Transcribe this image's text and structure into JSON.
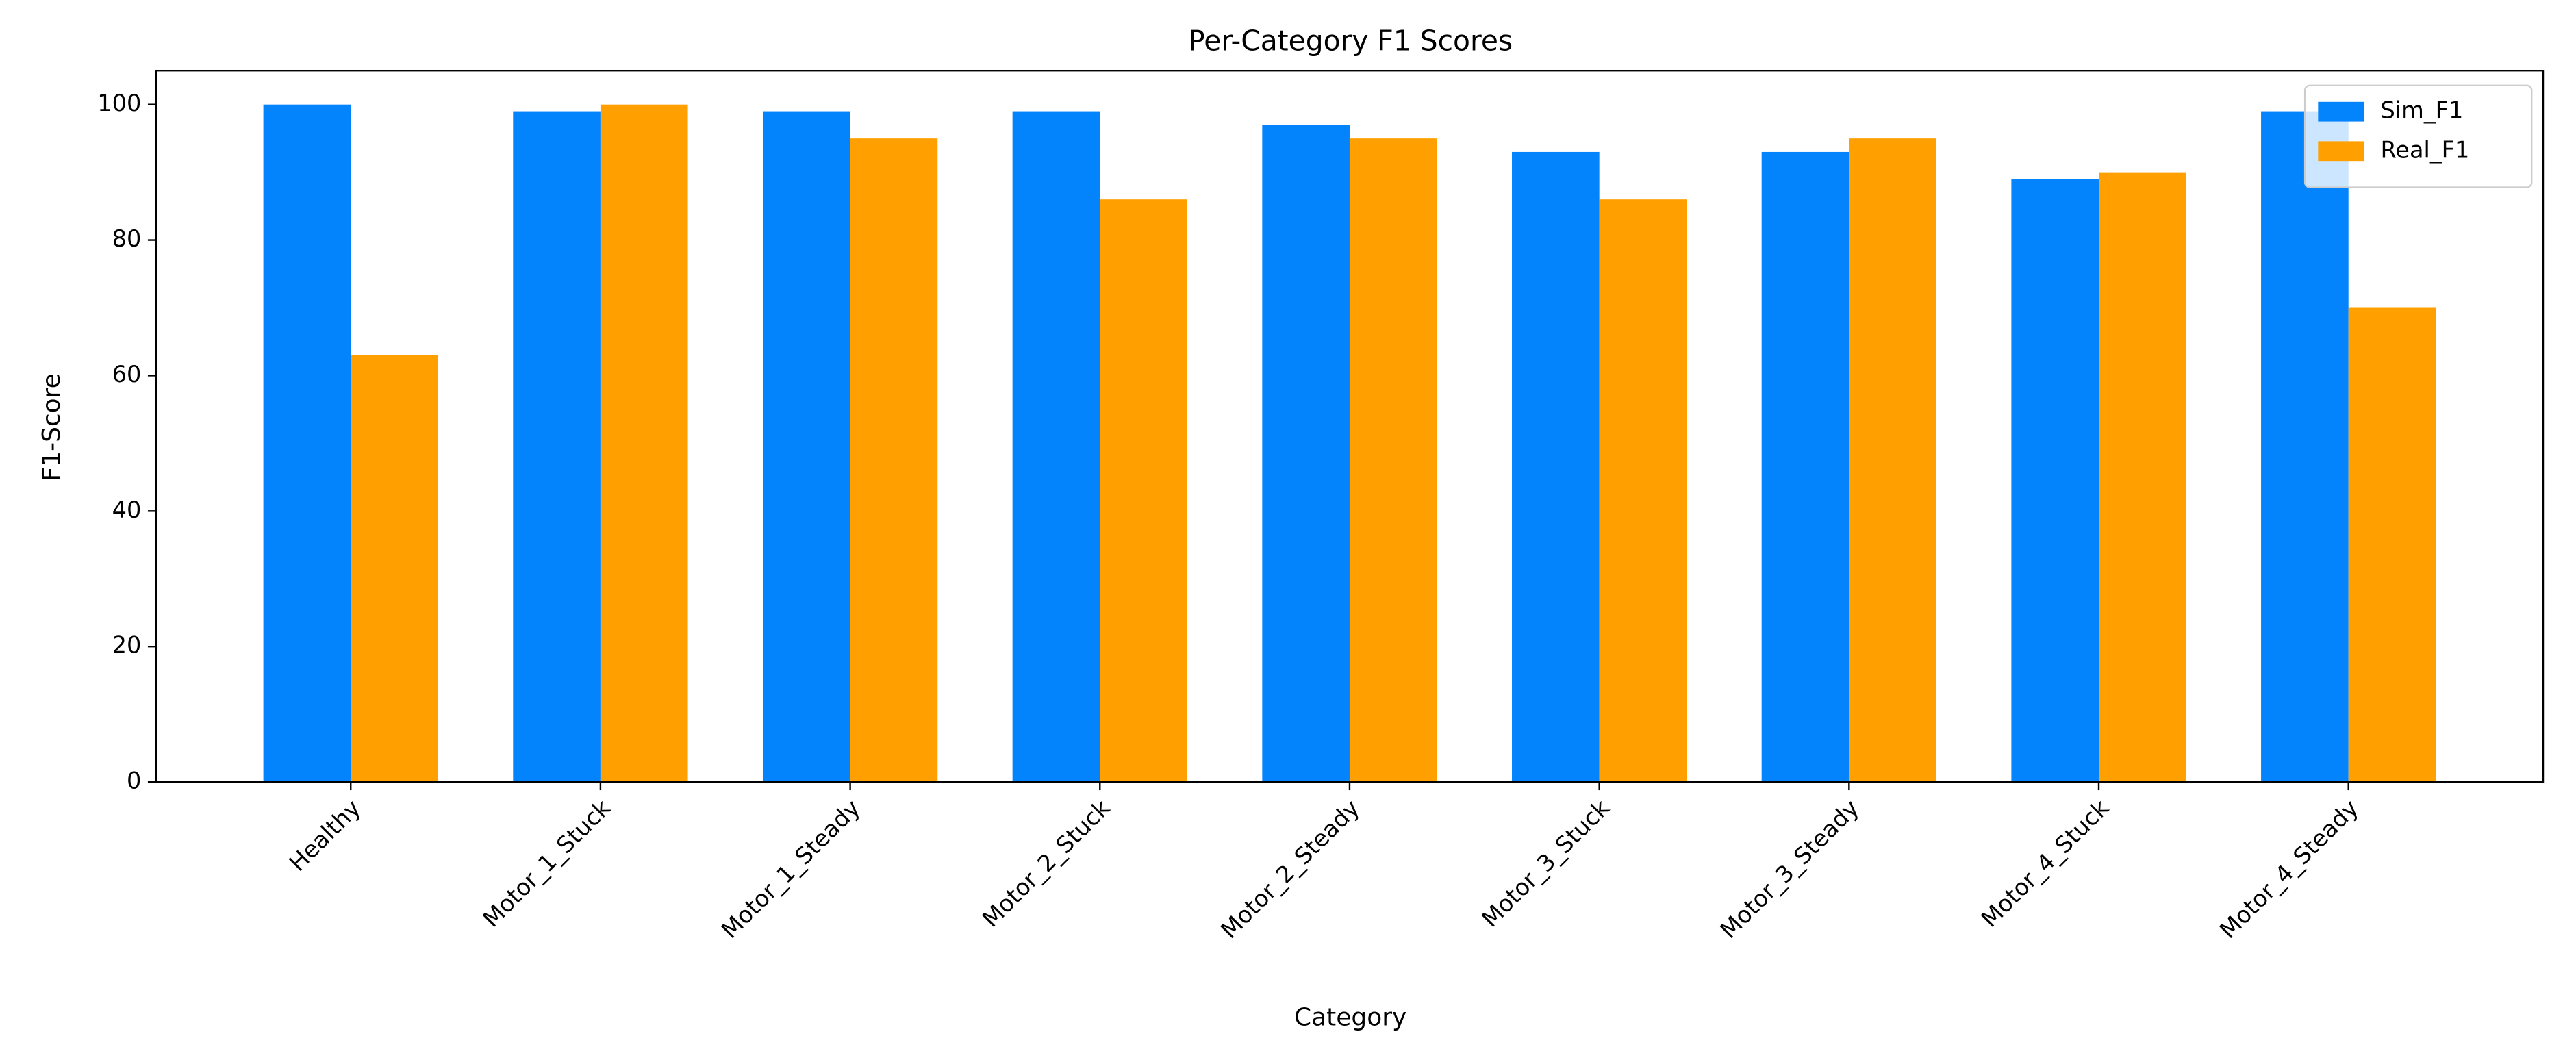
{
  "chart_data": {
    "type": "bar",
    "title": "Per-Category F1 Scores",
    "x_label": "Category",
    "y_label": "F1-Score",
    "categories": [
      "Healthy",
      "Motor_1_Stuck",
      "Motor_1_Steady",
      "Motor_2_Stuck",
      "Motor_2_Steady",
      "Motor_3_Stuck",
      "Motor_3_Steady",
      "Motor_4_Stuck",
      "Motor_4_Steady"
    ],
    "series": [
      {
        "name": "Sim_F1",
        "color": "#0384fc",
        "values": [
          100,
          99,
          99,
          99,
          97,
          93,
          93,
          89,
          99
        ]
      },
      {
        "name": "Real_F1",
        "color": "#ffa000",
        "values": [
          63,
          100,
          95,
          86,
          95,
          86,
          95,
          90,
          70
        ]
      }
    ],
    "ylim": [
      0,
      105
    ],
    "yticks": [
      0,
      20,
      40,
      60,
      80,
      100
    ],
    "legend": "upper right"
  }
}
